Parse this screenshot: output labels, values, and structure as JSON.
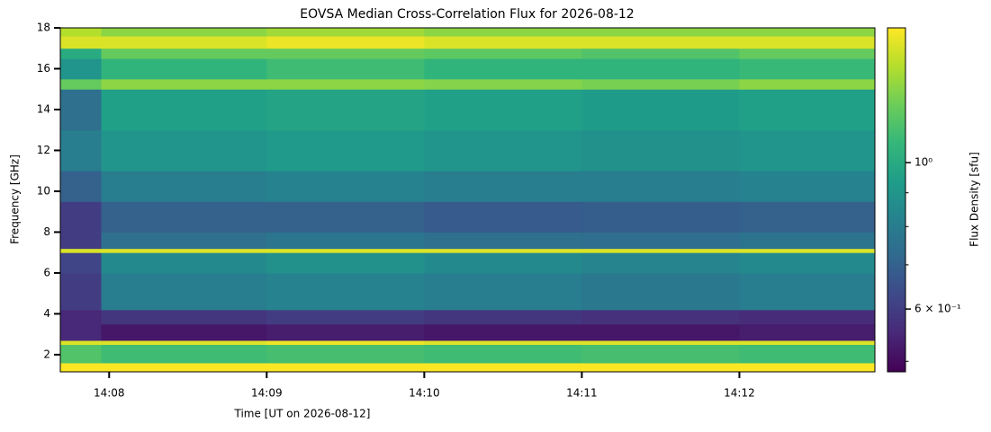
{
  "chart_data": {
    "type": "heatmap",
    "title": "EOVSA Median Cross-Correlation Flux for 2026-08-12",
    "x_label": "Time [UT on 2026-08-12]",
    "y_label": "Frequency [GHz]",
    "colorbar_label": "Flux Density [sfu]",
    "colormap": "viridis",
    "color_scale": "log",
    "x_edges": [
      847.69,
      847.95,
      849,
      850,
      851,
      852,
      852.86
    ],
    "y_edges": [
      1.16,
      1.6,
      2.5,
      2.7,
      3.5,
      4.2,
      6,
      7,
      7.2,
      8,
      9.5,
      11,
      13,
      15,
      15.5,
      16.5,
      17,
      17.6,
      18
    ],
    "values": [
      [
        1.6,
        1.6,
        1.6,
        1.6,
        1.6,
        1.6
      ],
      [
        1.15,
        1.1,
        1.12,
        1.1,
        1.12,
        1.1
      ],
      [
        1.5,
        1.5,
        1.55,
        1.5,
        1.5,
        1.5
      ],
      [
        0.55,
        0.52,
        0.53,
        0.52,
        0.52,
        0.53
      ],
      [
        0.55,
        0.58,
        0.6,
        0.58,
        0.57,
        0.56
      ],
      [
        0.6,
        0.8,
        0.82,
        0.8,
        0.78,
        0.8
      ],
      [
        0.62,
        0.85,
        0.88,
        0.85,
        0.83,
        0.85
      ],
      [
        1.5,
        1.5,
        1.5,
        1.5,
        1.5,
        1.5
      ],
      [
        0.6,
        0.75,
        0.77,
        0.75,
        0.74,
        0.76
      ],
      [
        0.6,
        0.7,
        0.7,
        0.68,
        0.69,
        0.7
      ],
      [
        0.7,
        0.8,
        0.82,
        0.8,
        0.8,
        0.82
      ],
      [
        0.8,
        0.9,
        0.92,
        0.9,
        0.88,
        0.9
      ],
      [
        0.75,
        0.95,
        0.97,
        0.95,
        0.93,
        0.95
      ],
      [
        1.2,
        1.3,
        1.3,
        1.28,
        1.25,
        1.3
      ],
      [
        0.9,
        1.05,
        1.1,
        1.05,
        1.05,
        1.08
      ],
      [
        1.0,
        1.2,
        1.2,
        1.18,
        1.15,
        1.2
      ],
      [
        1.5,
        1.5,
        1.55,
        1.5,
        1.5,
        1.5
      ],
      [
        1.4,
        1.3,
        1.35,
        1.3,
        1.3,
        1.3
      ]
    ],
    "xlim": [
      847.69,
      852.86
    ],
    "xticks": [
      {
        "value": 848,
        "label": "14:08"
      },
      {
        "value": 849,
        "label": "14:09"
      },
      {
        "value": 850,
        "label": "14:10"
      },
      {
        "value": 851,
        "label": "14:11"
      },
      {
        "value": 852,
        "label": "14:12"
      }
    ],
    "ylim": [
      1.16,
      18
    ],
    "yticks": [
      2,
      4,
      6,
      8,
      10,
      12,
      14,
      16,
      18
    ],
    "clim": [
      0.482,
      1.6
    ],
    "cticks": [
      {
        "value": 1,
        "label": "10⁰"
      },
      {
        "value": 0.6,
        "label": "6 × 10⁻¹"
      }
    ],
    "cminor_ticks": [
      0.5,
      0.7,
      0.8,
      0.9
    ]
  }
}
